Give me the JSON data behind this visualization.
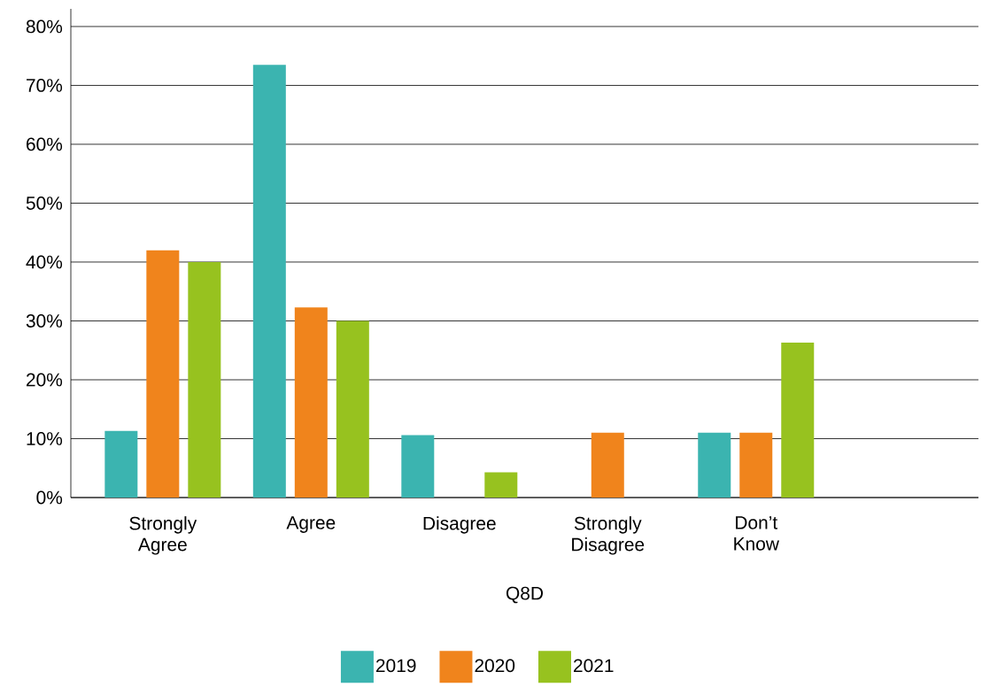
{
  "chart_data": {
    "type": "bar",
    "xlabel": "Q8D",
    "categories": [
      "Strongly Agree",
      "Agree",
      "Disagree",
      "Strongly Disagree",
      "Don’t Know"
    ],
    "series": [
      {
        "name": "2019",
        "color": "#3bb4b0",
        "values": [
          11.3,
          73.5,
          10.6,
          null,
          11
        ]
      },
      {
        "name": "2020",
        "color": "#f0841c",
        "values": [
          42,
          32.3,
          null,
          11,
          11
        ]
      },
      {
        "name": "2021",
        "color": "#97c21f",
        "values": [
          40,
          30,
          4.3,
          null,
          26.3
        ]
      }
    ],
    "ylim": [
      0,
      83
    ],
    "yticks": [
      {
        "value": 0,
        "label": "0%"
      },
      {
        "value": 10,
        "label": "10%"
      },
      {
        "value": 20,
        "label": "20%"
      },
      {
        "value": 30,
        "label": "30%"
      },
      {
        "value": 40,
        "label": "40%"
      },
      {
        "value": 50,
        "label": "50%"
      },
      {
        "value": 60,
        "label": "60%"
      },
      {
        "value": 70,
        "label": "70%"
      },
      {
        "value": 80,
        "label": "80%"
      }
    ],
    "grid": "y",
    "legend": "bottom"
  }
}
